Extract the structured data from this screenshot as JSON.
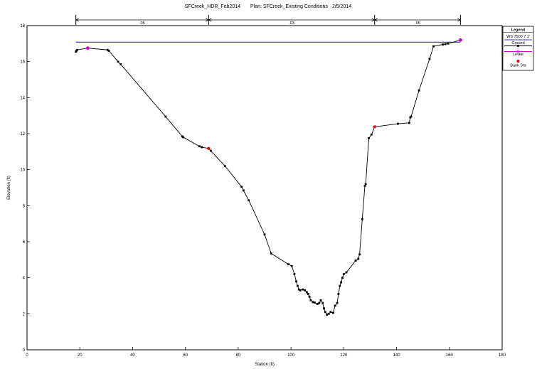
{
  "header": {
    "title": "SFCreek_HDR_Feb2014",
    "plan": "Plan: SFCreek_Existing Conditions",
    "date": "2/5/2014"
  },
  "chart_data": {
    "type": "line",
    "title": "SFCreek_HDR_Feb2014     Plan: SFCreek_Existing Conditions   2/5/2014",
    "xlabel": "Station (ft)",
    "ylabel": "Elevation (ft)",
    "xlim": [
      0,
      180
    ],
    "ylim": [
      0,
      18
    ],
    "x_ticks": [
      0,
      20,
      40,
      60,
      80,
      100,
      120,
      140,
      160,
      180
    ],
    "y_ticks": [
      0,
      2,
      4,
      6,
      8,
      10,
      12,
      14,
      16,
      18
    ],
    "grid": false,
    "legend": {
      "placement": "top-right",
      "title": "Legend",
      "entries": [
        "WS 7500 7.1'",
        "Ground",
        "Levee",
        "Bank Sta"
      ]
    },
    "colors": {
      "ws": "#3333cc",
      "ground": "#000000",
      "levee": "#cc00cc",
      "bank": "#dd0000"
    },
    "n_values": {
      "segments": [
        {
          "from": 18.5,
          "to": 68.8,
          "label": ".05"
        },
        {
          "from": 68.8,
          "to": 131.7,
          "label": ".03"
        },
        {
          "from": 131.7,
          "to": 164.2,
          "label": ".05"
        }
      ]
    },
    "series": [
      {
        "name": "WS 7500 7.1'",
        "type": "line",
        "x": [
          18.5,
          164.2
        ],
        "y": [
          17.08,
          17.08
        ]
      },
      {
        "name": "Ground",
        "type": "line",
        "x": [
          18.5,
          18.7,
          19.0,
          23.0,
          30.5,
          31.0,
          34.5,
          35.5,
          52.5,
          58.8,
          59.2,
          65.3,
          66.2,
          68.8,
          69.6,
          75.0,
          81.3,
          82.0,
          84.0,
          90.0,
          92.5,
          99.0,
          100.3,
          101.3,
          102.0,
          102.5,
          103.0,
          103.5,
          104.5,
          105.3,
          106.0,
          106.5,
          107.0,
          107.5,
          108.3,
          109.0,
          110.0,
          110.7,
          111.3,
          112.0,
          112.5,
          113.0,
          113.6,
          114.3,
          115.0,
          116.0,
          116.7,
          117.5,
          118.0,
          118.5,
          119.0,
          119.5,
          120.0,
          121.0,
          124.5,
          125.5,
          126.0,
          127.0,
          128.0,
          128.3,
          129.5,
          130.5,
          131.7,
          140.5,
          144.8,
          145.2,
          145.5,
          148.5,
          152.5,
          154.0,
          157.5,
          158.5,
          159.5,
          164.2
        ],
        "y": [
          16.55,
          16.6,
          16.65,
          16.75,
          16.65,
          16.6,
          16.0,
          15.85,
          12.95,
          11.85,
          11.8,
          11.3,
          11.25,
          11.18,
          11.05,
          10.2,
          9.05,
          8.85,
          8.3,
          6.4,
          5.35,
          4.75,
          4.65,
          4.2,
          3.8,
          3.55,
          3.35,
          3.3,
          3.35,
          3.3,
          3.2,
          3.1,
          2.95,
          2.75,
          2.65,
          2.62,
          2.55,
          2.6,
          2.75,
          2.6,
          2.3,
          2.1,
          1.95,
          2.0,
          2.1,
          2.05,
          2.45,
          2.6,
          3.1,
          3.55,
          3.75,
          4.0,
          4.2,
          4.3,
          4.95,
          5.05,
          5.3,
          7.25,
          9.1,
          9.2,
          11.75,
          11.95,
          12.38,
          12.55,
          12.6,
          12.9,
          12.95,
          14.4,
          16.15,
          16.85,
          16.95,
          16.97,
          17.0,
          17.2
        ]
      },
      {
        "name": "Levee",
        "type": "points",
        "x": [
          23.0,
          164.2
        ],
        "y": [
          16.75,
          17.2
        ]
      },
      {
        "name": "Bank Sta",
        "type": "points",
        "x": [
          68.8,
          131.7
        ],
        "y": [
          11.18,
          12.38
        ]
      }
    ]
  }
}
